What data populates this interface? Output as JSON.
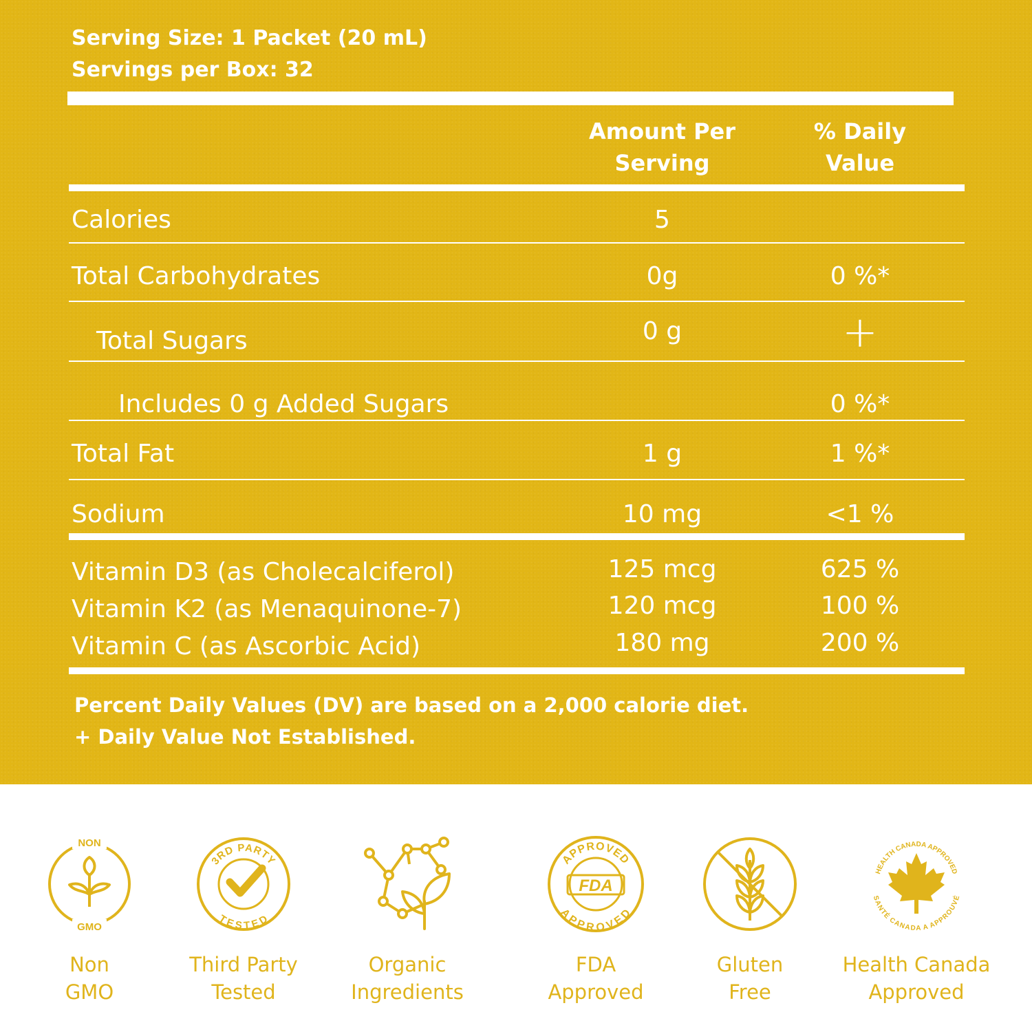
{
  "serving": {
    "size": "Serving Size: 1 Packet (20 mL)",
    "per_box": "Servings per Box: 32"
  },
  "header": {
    "amount_line1": "Amount Per",
    "amount_line2": "Serving",
    "dv_line1": "% Daily",
    "dv_line2": "Value"
  },
  "rows": [
    {
      "label": "Calories",
      "amount": "5",
      "dv": ""
    },
    {
      "label": "Total Carbohydrates",
      "amount": "0g",
      "dv": "0 %*"
    },
    {
      "label": "Total Sugars",
      "amount": "0 g",
      "dv": "+"
    },
    {
      "label": "Includes 0 g Added Sugars",
      "amount": "",
      "dv": "0 %*"
    },
    {
      "label": "Total Fat",
      "amount": "1 g",
      "dv": "1 %*"
    },
    {
      "label": "Sodium",
      "amount": "10 mg",
      "dv": "<1 %"
    }
  ],
  "vitamins": [
    {
      "label": "Vitamin D3 (as Cholecalciferol)",
      "amount": "125 mcg",
      "dv": "625 %"
    },
    {
      "label": "Vitamin K2 (as Menaquinone-7)",
      "amount": "120 mcg",
      "dv": "100 %"
    },
    {
      "label": "Vitamin C (as Ascorbic Acid)",
      "amount": "180 mg",
      "dv": "200 %"
    }
  ],
  "footnotes": {
    "line1": "Percent Daily Values (DV) are based on a 2,000 calorie diet.",
    "line2": "+ Daily Value Not Established."
  },
  "badges": [
    {
      "icon": "non-gmo-icon",
      "line1": "Non",
      "line2": "GMO",
      "icon_top": "NON",
      "icon_bottom": "GMO"
    },
    {
      "icon": "third-party-tested-icon",
      "line1": "Third Party",
      "line2": "Tested",
      "icon_top": "3RD PARTY",
      "icon_bottom": "TESTED"
    },
    {
      "icon": "organic-ingredients-icon",
      "line1": "Organic",
      "line2": "Ingredients"
    },
    {
      "icon": "fda-approved-icon",
      "line1": "FDA",
      "line2": "Approved",
      "icon_top": "APPROVED",
      "icon_mid": "FDA",
      "icon_bottom": "APPROVED"
    },
    {
      "icon": "gluten-free-icon",
      "line1": "Gluten",
      "line2": "Free"
    },
    {
      "icon": "health-canada-icon",
      "line1": "Health Canada",
      "line2": "Approved",
      "icon_top": "HEALTH CANADA APPROVED",
      "icon_bottom": "SANTÉ CANADA A APPROUVÉ"
    }
  ],
  "colors": {
    "panel": "#e2b616",
    "text_on_panel": "#ffffff",
    "badge": "#e0b41c"
  }
}
